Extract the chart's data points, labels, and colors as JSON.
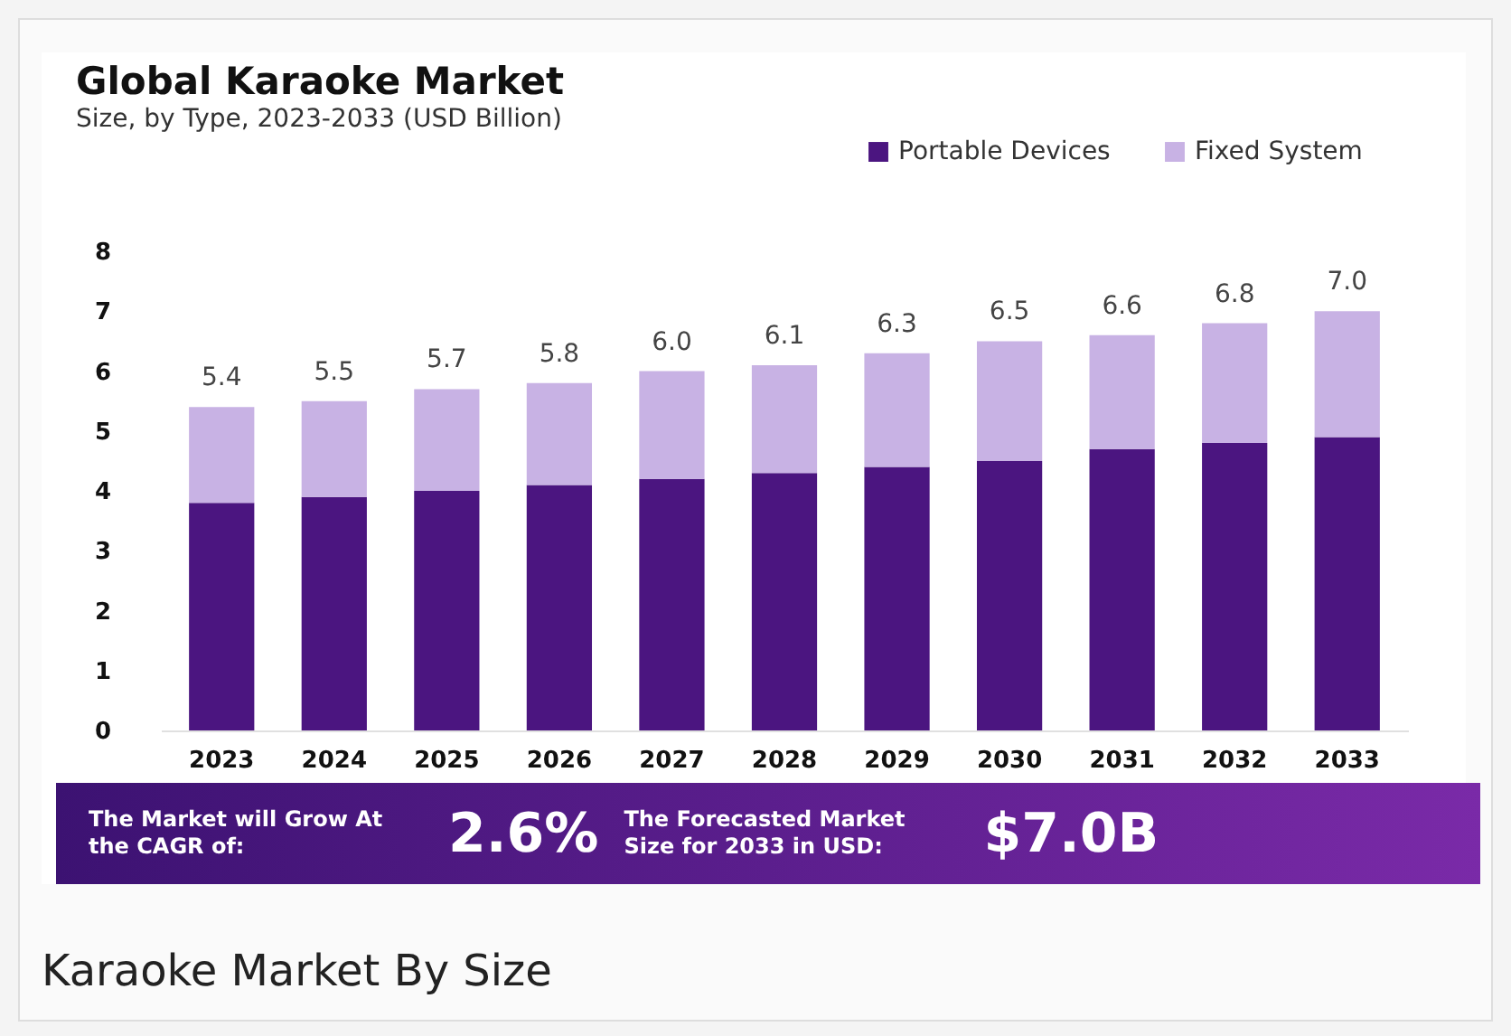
{
  "chart_data": {
    "type": "bar",
    "title": "Global Karaoke Market",
    "subtitle": "Size, by Type, 2023-2033 (USD Billion)",
    "categories": [
      "2023",
      "2024",
      "2025",
      "2026",
      "2027",
      "2028",
      "2029",
      "2030",
      "2031",
      "2032",
      "2033"
    ],
    "series": [
      {
        "name": "Portable Devices",
        "color": "#4b1580",
        "values": [
          3.8,
          3.9,
          4.0,
          4.1,
          4.2,
          4.3,
          4.4,
          4.5,
          4.7,
          4.8,
          4.9
        ]
      },
      {
        "name": "Fixed System",
        "color": "#c8b2e4",
        "values": [
          1.6,
          1.6,
          1.7,
          1.7,
          1.8,
          1.8,
          1.9,
          2.0,
          1.9,
          2.0,
          2.1
        ]
      }
    ],
    "stacked": true,
    "totals": [
      "5.4",
      "5.5",
      "5.7",
      "5.8",
      "6.0",
      "6.1",
      "6.3",
      "6.5",
      "6.6",
      "6.8",
      "7.0"
    ],
    "ylim": [
      0,
      8
    ],
    "yticks": [
      0,
      1,
      2,
      3,
      4,
      5,
      6,
      7,
      8
    ],
    "grid": false,
    "legend": "top right",
    "annotations": [
      "The Market will Grow At the CAGR of:",
      "2.6%",
      "The Forecasted Market Size for 2033 in USD:",
      "$7.0B",
      "Karaoke Market By Size"
    ]
  }
}
